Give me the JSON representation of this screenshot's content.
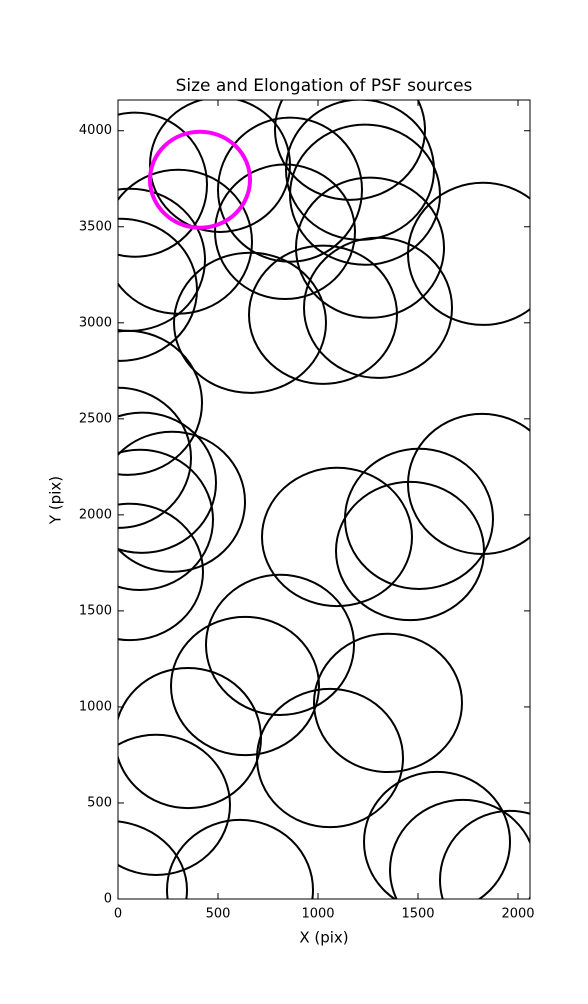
{
  "chart_data": {
    "type": "ellipse",
    "title": "Size and Elongation of PSF sources",
    "xlabel": "X (pix)",
    "ylabel": "Y (pix)",
    "xlim": [
      0,
      2060
    ],
    "ylim": [
      0,
      4160
    ],
    "xticks": [
      0,
      500,
      1000,
      1500,
      2000
    ],
    "yticks": [
      0,
      500,
      1000,
      1500,
      2000,
      2500,
      3000,
      3500,
      4000
    ],
    "series": [
      {
        "color": "#000000",
        "x": [
          510,
          85,
          860,
          1160,
          1210,
          300,
          835,
          1235,
          1260,
          1825,
          60,
          10,
          660,
          1025,
          1300,
          50,
          0,
          120,
          270,
          110,
          60,
          1095,
          1505,
          1460,
          1820,
          810,
          635,
          350,
          1350,
          1060,
          190,
          -50,
          610,
          1595,
          1725,
          1960
        ],
        "y": [
          3823,
          3719,
          3693,
          4005,
          3797,
          3422,
          3474,
          3667,
          3391,
          3359,
          3328,
          3172,
          3000,
          3042,
          3078,
          2583,
          2297,
          2167,
          2068,
          1974,
          1703,
          1885,
          1979,
          1812,
          2161,
          1323,
          1109,
          838,
          1021,
          734,
          490,
          47,
          47,
          297,
          151,
          99
        ],
        "width": [
          700,
          720,
          720,
          750,
          740,
          740,
          700,
          750,
          740,
          750,
          750,
          770,
          760,
          740,
          740,
          740,
          730,
          740,
          730,
          730,
          730,
          750,
          740,
          740,
          740,
          740,
          740,
          730,
          740,
          730,
          740,
          790,
          730,
          730,
          730,
          700
        ],
        "height": [
          700,
          750,
          750,
          730,
          730,
          750,
          700,
          730,
          730,
          740,
          740,
          740,
          730,
          720,
          730,
          750,
          730,
          730,
          730,
          730,
          710,
          720,
          730,
          720,
          730,
          730,
          720,
          730,
          720,
          720,
          730,
          720,
          730,
          730,
          730,
          720
        ]
      },
      {
        "color": "#ff00ff",
        "x": [
          410
        ],
        "y": [
          3745
        ],
        "width": [
          500
        ],
        "height": [
          500
        ]
      }
    ]
  }
}
